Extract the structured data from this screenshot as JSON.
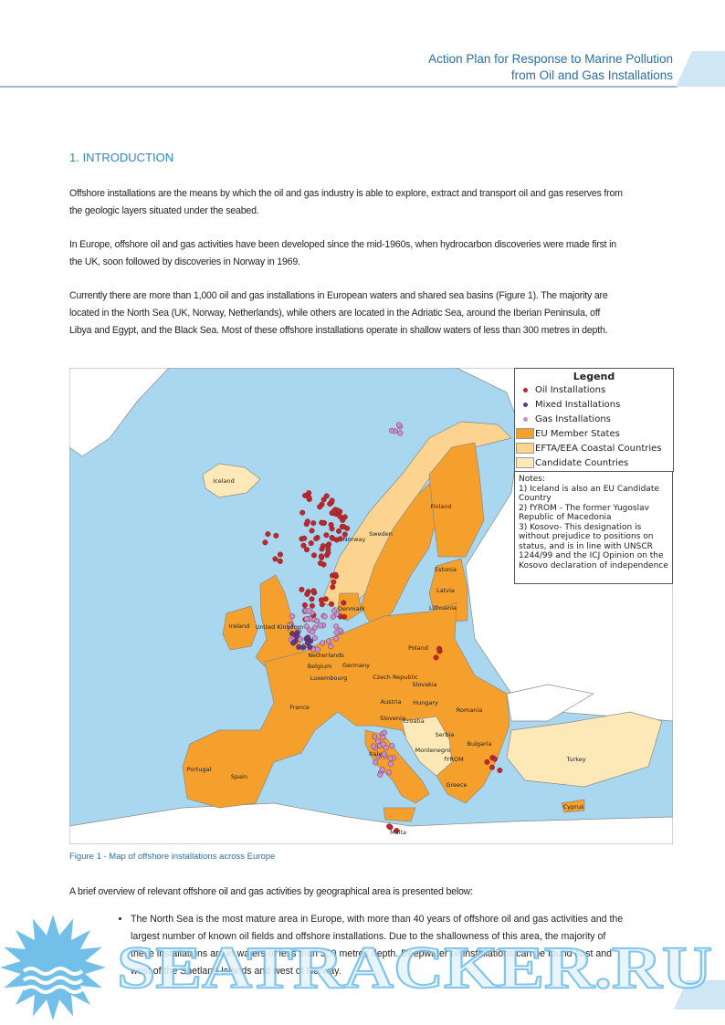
{
  "header": {
    "lines": [
      "Action Plan for Response to Marine Pollution",
      "from Oil and Gas Installations"
    ]
  },
  "section_heading": "1. INTRODUCTION",
  "paragraphs": [
    "Offshore installations are the means by which the oil and gas industry is able to explore, extract and transport oil and gas reserves from the geologic layers situated under the seabed.",
    "In Europe, offshore oil and gas activities have been developed since the mid-1960s, when hydrocarbon discoveries were made first in the UK, soon followed by discoveries in Norway in 1969.",
    "Currently there are more than 1,000 oil and gas installations in European waters and shared sea basins (Figure 1). The majority are located in the North Sea (UK, Norway, Netherlands), while others are located in the Adriatic Sea, around the Iberian Peninsula, off Libya and Egypt, and the Black Sea. Most of these offshore installations operate in shallow waters of less than 300 metres in depth."
  ],
  "figure": {
    "legend_title": "Legend",
    "legend": [
      {
        "label": "Oil Installations",
        "symbol": "dot",
        "color": "#c0272d"
      },
      {
        "label": "Mixed Installations",
        "symbol": "dot",
        "color": "#5b3a8a"
      },
      {
        "label": "Gas Installations",
        "symbol": "dot",
        "color": "#c58fd0"
      },
      {
        "label": "EU Member States",
        "symbol": "patch",
        "color": "#f5a02c"
      },
      {
        "label": "EFTA/EEA Coastal Countries",
        "symbol": "patch",
        "color": "#fcd48f"
      },
      {
        "label": "Candidate Countries",
        "symbol": "patch",
        "color": "#fde9b8"
      }
    ],
    "notes_title": "Notes:",
    "notes": [
      "1) Iceland is also an EU Candidate Country",
      "2) fYROM - The former Yugoslav Republic of Macedonia",
      "3) Kosovo- This designation is without prejudice to positions on status, and is in line with UNSCR 1244/99 and the ICJ Opinion on the Kosovo declaration of independence"
    ],
    "country_labels": [
      "Iceland",
      "Finland",
      "Sweden",
      "Norway",
      "Estonia",
      "Latvia",
      "Lithuania",
      "Denmark",
      "Ireland",
      "United Kingdom",
      "Netherlands",
      "Poland",
      "Belgium",
      "Germany",
      "Luxembourg",
      "Czech Republic",
      "Slovakia",
      "Austria",
      "Hungary",
      "France",
      "Romania",
      "Slovenia",
      "Croatia",
      "Serbia",
      "Italy",
      "Montenegro",
      "Bulgaria",
      "fYROM",
      "Portugal",
      "Spain",
      "Turkey",
      "Greece",
      "Cyprus",
      "Malta"
    ],
    "caption": "Figure 1 - Map of offshore installations across Europe"
  },
  "overview": "A brief overview of relevant offshore oil and gas activities by geographical area is presented below:",
  "bullets": [
    "The North Sea is the most mature area in Europe, with more than 40 years of offshore oil and gas activities and the largest number of known oil fields and offshore installations. Due to the shallowness of this area, the majority of these installations are in waters of less than 300 metres depth. Deepwater oil installations can be found east and west of the Shetland Islands and west of Norway."
  ],
  "watermark": "SEATRACKER.RU"
}
